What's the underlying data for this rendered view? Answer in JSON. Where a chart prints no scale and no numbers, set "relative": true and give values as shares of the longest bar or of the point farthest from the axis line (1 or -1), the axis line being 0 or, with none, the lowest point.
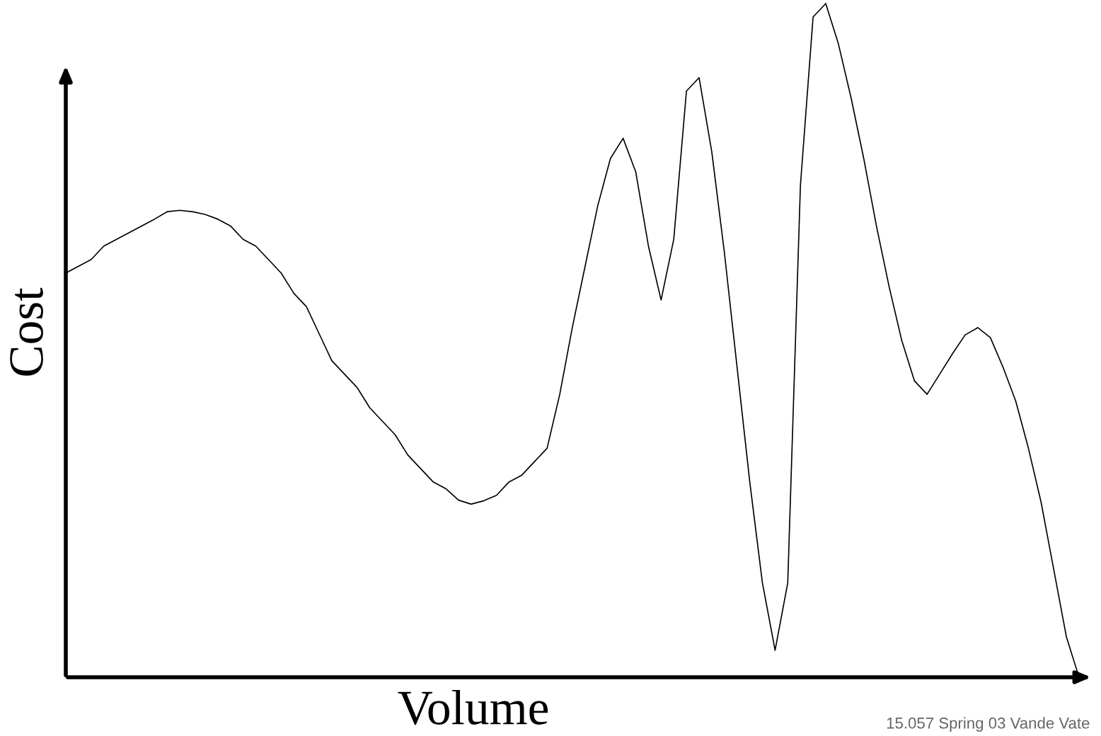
{
  "chart_data": {
    "type": "line",
    "relative": true,
    "xlabel": "Volume",
    "ylabel": "Cost",
    "annotations": [
      "15.057 Spring 03 Vande Vate"
    ],
    "categories": [
      null,
      null,
      null,
      null,
      null,
      null,
      null,
      null,
      null,
      null,
      null,
      null,
      null,
      null,
      null,
      null,
      null,
      null,
      null,
      null,
      null,
      null,
      null,
      null,
      null,
      null,
      null,
      null,
      null,
      null,
      null,
      null,
      null,
      null,
      null,
      null,
      null,
      null,
      null,
      null,
      null,
      null,
      null,
      null,
      null,
      null,
      null,
      null,
      null,
      null,
      null,
      null,
      null,
      null,
      null,
      null,
      null,
      null,
      null,
      null,
      null,
      null,
      null,
      null,
      null,
      null,
      null,
      null,
      null,
      null,
      null,
      null,
      null,
      null,
      null,
      null,
      null,
      null,
      null,
      null,
      null
    ],
    "series": [
      {
        "color": "#000000",
        "values": [
          0.6,
          0.61,
          0.62,
          0.64,
          0.65,
          0.66,
          0.67,
          0.68,
          0.691,
          0.693,
          0.691,
          0.687,
          0.68,
          0.67,
          0.65,
          0.64,
          0.62,
          0.6,
          0.57,
          0.55,
          0.51,
          0.47,
          0.45,
          0.43,
          0.4,
          0.38,
          0.36,
          0.33,
          0.31,
          0.29,
          0.28,
          0.263,
          0.257,
          0.262,
          0.27,
          0.29,
          0.3,
          0.32,
          0.34,
          0.42,
          0.52,
          0.61,
          0.7,
          0.77,
          0.8,
          0.75,
          0.64,
          0.56,
          0.65,
          0.87,
          0.89,
          0.78,
          0.63,
          0.46,
          0.29,
          0.14,
          0.04,
          0.14,
          0.73,
          0.98,
          1.0,
          0.94,
          0.86,
          0.77,
          0.67,
          0.58,
          0.5,
          0.44,
          0.42,
          0.45,
          0.48,
          0.508,
          0.519,
          0.504,
          0.46,
          0.41,
          0.34,
          0.26,
          0.16,
          0.06,
          0
        ]
      }
    ],
    "grid": false,
    "legend": false,
    "marker": "none",
    "line_style": "solid"
  }
}
